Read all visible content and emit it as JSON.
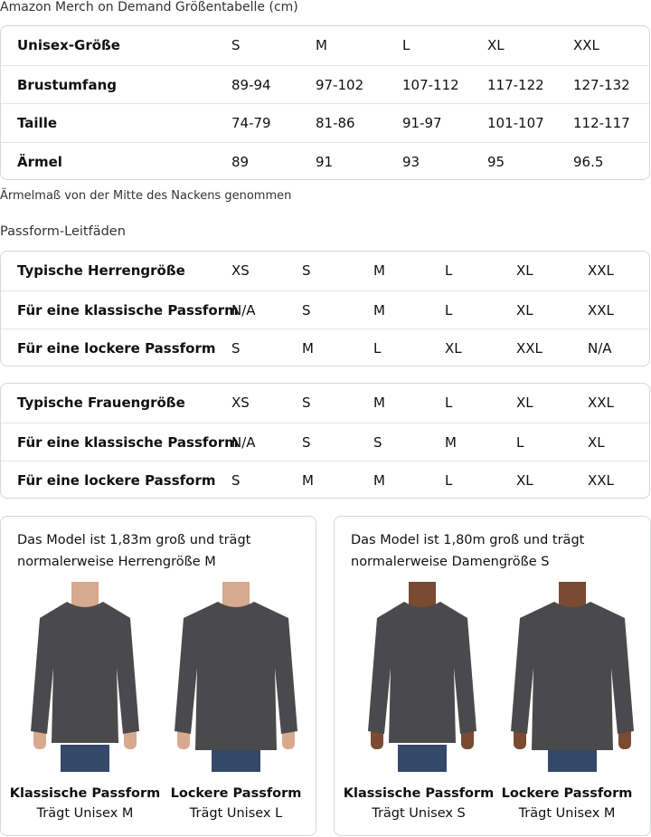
{
  "title": "Amazon Merch on Demand Größentabelle (cm)",
  "size_table": {
    "header": [
      "Unisex-Größe",
      "S",
      "M",
      "L",
      "XL",
      "XXL"
    ],
    "rows": [
      [
        "Brustumfang",
        "89-94",
        "97-102",
        "107-112",
        "117-122",
        "127-132"
      ],
      [
        "Taille",
        "74-79",
        "81-86",
        "91-97",
        "101-107",
        "112-117"
      ],
      [
        "Ärmel",
        "89",
        "91",
        "93",
        "95",
        "96.5"
      ]
    ]
  },
  "sleeve_note": "Ärmelmaß von der Mitte des Nackens genommen",
  "fit_title": "Passform-Leitfäden",
  "men_table": [
    [
      "Typische Herrengröße",
      "XS",
      "S",
      "M",
      "L",
      "XL",
      "XXL"
    ],
    [
      "Für eine klassische Passform",
      "N/A",
      "S",
      "M",
      "L",
      "XL",
      "XXL"
    ],
    [
      "Für eine lockere Passform",
      "S",
      "M",
      "L",
      "XL",
      "XXL",
      "N/A"
    ]
  ],
  "women_table": [
    [
      "Typische Frauengröße",
      "XS",
      "S",
      "M",
      "L",
      "XL",
      "XXL"
    ],
    [
      "Für eine klassische Passform",
      "N/A",
      "S",
      "S",
      "M",
      "L",
      "XL"
    ],
    [
      "Für eine lockere Passform",
      "S",
      "M",
      "M",
      "L",
      "XL",
      "XXL"
    ]
  ],
  "cards": [
    {
      "intro": "Das Model ist 1,83m groß und trägt normalerweise Herrengröße M",
      "fits": [
        {
          "name": "Klassische Passform",
          "wears": "Trägt Unisex M"
        },
        {
          "name": "Lockere Passform",
          "wears": "Trägt Unisex L"
        }
      ]
    },
    {
      "intro": "Das Model ist 1,80m groß und trägt normalerweise Damengröße S",
      "fits": [
        {
          "name": "Klassische Passform",
          "wears": "Trägt Unisex S"
        },
        {
          "name": "Lockere Passform",
          "wears": "Trägt Unisex M"
        }
      ]
    }
  ],
  "colors": {
    "sweatshirt": "#4a4a4c",
    "jeans": "#34486a",
    "skin_men": "#d7a98e",
    "skin_women": "#7a4a32",
    "border": "#d5d9d9"
  }
}
